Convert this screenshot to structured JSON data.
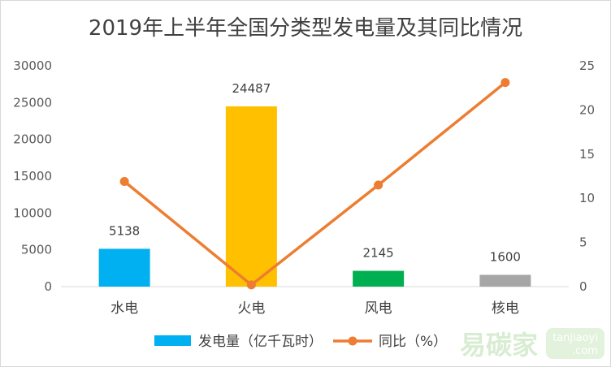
{
  "chart_data": {
    "type": "bar+line",
    "title": "2019年上半年全国分类型发电量及其同比情况",
    "categories": [
      "水电",
      "火电",
      "风电",
      "核电"
    ],
    "series": [
      {
        "name": "发电量（亿千瓦时）",
        "type": "bar",
        "axis": "left",
        "values": [
          5138,
          24487,
          2145,
          1600
        ],
        "colors": [
          "#00b0f0",
          "#ffc000",
          "#00b050",
          "#a6a6a6"
        ]
      },
      {
        "name": "同比（%）",
        "type": "line",
        "axis": "right",
        "values": [
          11.9,
          0.2,
          11.5,
          23.1
        ],
        "color": "#ed7d31"
      }
    ],
    "ylim_left": [
      0,
      30000
    ],
    "yticks_left": [
      "0",
      "5000",
      "10000",
      "15000",
      "20000",
      "25000",
      "30000"
    ],
    "ylim_right": [
      0,
      25
    ],
    "yticks_right": [
      "0",
      "5",
      "10",
      "15",
      "20",
      "25"
    ],
    "data_labels": [
      "5138",
      "24487",
      "2145",
      "1600"
    ],
    "grid": false,
    "legend": "bottom"
  },
  "watermark": {
    "brand": "易碳家",
    "site_top": "tanjiaoyi",
    "site_bottom": ".com"
  }
}
